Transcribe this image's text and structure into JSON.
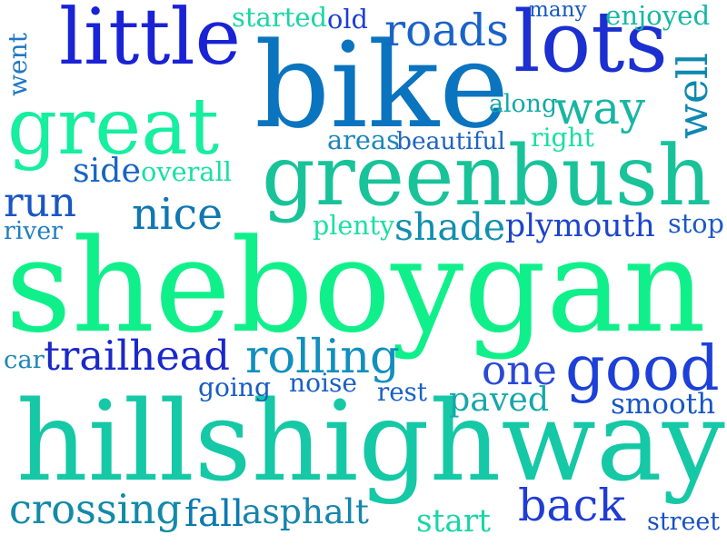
{
  "word_cloud": {
    "words": [
      {
        "text": "sheboygan",
        "color": "#10f08a"
      },
      {
        "text": "hillshighway",
        "color": "#15c8a6"
      },
      {
        "text": "greenbush",
        "color": "#19c39a"
      },
      {
        "text": "bike",
        "color": "#0a74bf"
      },
      {
        "text": "lots",
        "color": "#1c2fd0"
      },
      {
        "text": "little",
        "color": "#1a22d6"
      },
      {
        "text": "great",
        "color": "#16eea0"
      },
      {
        "text": "good",
        "color": "#1d40d8"
      },
      {
        "text": "trailhead",
        "color": "#1a28c9"
      },
      {
        "text": "rolling",
        "color": "#118fbe"
      },
      {
        "text": "roads",
        "color": "#1a63c8"
      },
      {
        "text": "back",
        "color": "#1f3dd5"
      },
      {
        "text": "crossing",
        "color": "#128aa8"
      },
      {
        "text": "asphalt",
        "color": "#1585ad"
      },
      {
        "text": "fall",
        "color": "#0c7ab0"
      },
      {
        "text": "one",
        "color": "#2a49d8"
      },
      {
        "text": "way",
        "color": "#18b6a2"
      },
      {
        "text": "well",
        "color": "#0f88b0"
      },
      {
        "text": "nice",
        "color": "#0f77b2"
      },
      {
        "text": "run",
        "color": "#1956c4"
      },
      {
        "text": "shade",
        "color": "#118fb0"
      },
      {
        "text": "plymouth",
        "color": "#1c45cc"
      },
      {
        "text": "paved",
        "color": "#16a7ab"
      },
      {
        "text": "smooth",
        "color": "#1655c6"
      },
      {
        "text": "side",
        "color": "#1864c4"
      },
      {
        "text": "overall",
        "color": "#18e0a4"
      },
      {
        "text": "started",
        "color": "#1ad6a3"
      },
      {
        "text": "old",
        "color": "#1b40cf"
      },
      {
        "text": "many",
        "color": "#1558c2"
      },
      {
        "text": "enjoyed",
        "color": "#15b8a4"
      },
      {
        "text": "went",
        "color": "#1f78c4"
      },
      {
        "text": "along",
        "color": "#14a8a8"
      },
      {
        "text": "areas",
        "color": "#1c86ba"
      },
      {
        "text": "beautiful",
        "color": "#1e63c2"
      },
      {
        "text": "right",
        "color": "#1adfa0"
      },
      {
        "text": "river",
        "color": "#1f7ec4"
      },
      {
        "text": "plenty",
        "color": "#1ae0a1"
      },
      {
        "text": "stop",
        "color": "#1b58c6"
      },
      {
        "text": "car",
        "color": "#1f86b8"
      },
      {
        "text": "going",
        "color": "#185cc4"
      },
      {
        "text": "noise",
        "color": "#1a60c6"
      },
      {
        "text": "rest",
        "color": "#1860c8"
      },
      {
        "text": "start",
        "color": "#19d6a6"
      },
      {
        "text": "street",
        "color": "#1a50c2"
      }
    ]
  }
}
